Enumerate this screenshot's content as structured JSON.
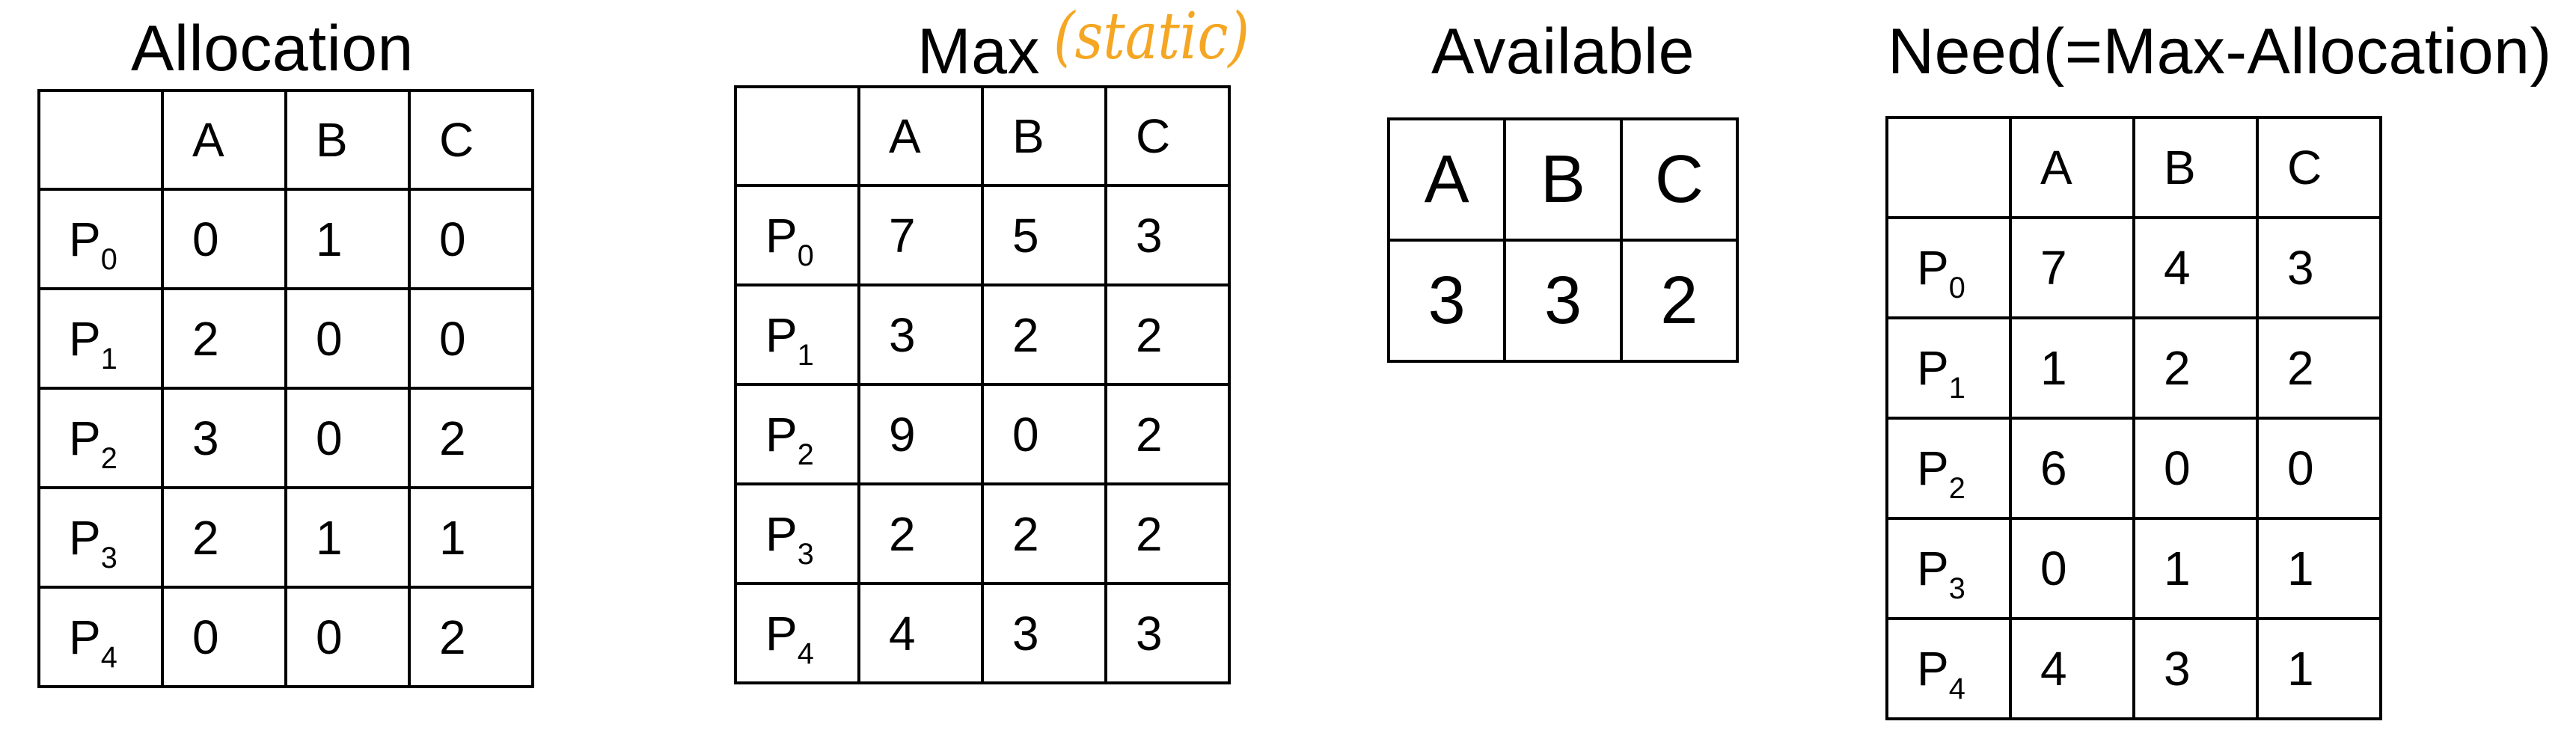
{
  "resource_columns": [
    "A",
    "B",
    "C"
  ],
  "allocation": {
    "title": "Allocation",
    "rows": [
      {
        "p": "P",
        "sub": "0",
        "v": [
          "0",
          "1",
          "0"
        ]
      },
      {
        "p": "P",
        "sub": "1",
        "v": [
          "2",
          "0",
          "0"
        ]
      },
      {
        "p": "P",
        "sub": "2",
        "v": [
          "3",
          "0",
          "2"
        ]
      },
      {
        "p": "P",
        "sub": "3",
        "v": [
          "2",
          "1",
          "1"
        ]
      },
      {
        "p": "P",
        "sub": "4",
        "v": [
          "0",
          "0",
          "2"
        ]
      }
    ]
  },
  "max": {
    "title": "Max",
    "annotation": "(static)",
    "annotation_color": "#F5A623",
    "rows": [
      {
        "p": "P",
        "sub": "0",
        "v": [
          "7",
          "5",
          "3"
        ]
      },
      {
        "p": "P",
        "sub": "1",
        "v": [
          "3",
          "2",
          "2"
        ]
      },
      {
        "p": "P",
        "sub": "2",
        "v": [
          "9",
          "0",
          "2"
        ]
      },
      {
        "p": "P",
        "sub": "3",
        "v": [
          "2",
          "2",
          "2"
        ]
      },
      {
        "p": "P",
        "sub": "4",
        "v": [
          "4",
          "3",
          "3"
        ]
      }
    ]
  },
  "available": {
    "title": "Available",
    "values": [
      "3",
      "3",
      "2"
    ]
  },
  "need": {
    "title": "Need(=Max-Allocation)",
    "rows": [
      {
        "p": "P",
        "sub": "0",
        "v": [
          "7",
          "4",
          "3"
        ]
      },
      {
        "p": "P",
        "sub": "1",
        "v": [
          "1",
          "2",
          "2"
        ]
      },
      {
        "p": "P",
        "sub": "2",
        "v": [
          "6",
          "0",
          "0"
        ]
      },
      {
        "p": "P",
        "sub": "3",
        "v": [
          "0",
          "1",
          "1"
        ]
      },
      {
        "p": "P",
        "sub": "4",
        "v": [
          "4",
          "3",
          "1"
        ]
      }
    ]
  }
}
